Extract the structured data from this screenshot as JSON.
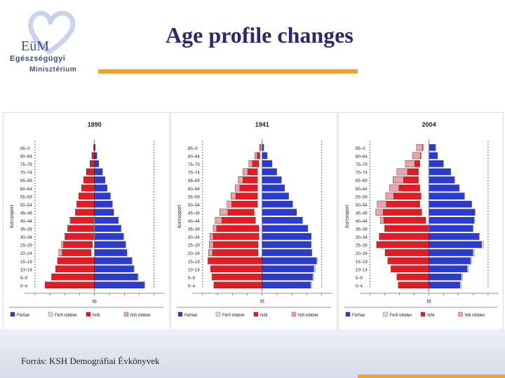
{
  "header": {
    "title": "Age profile changes",
    "logo": {
      "mark": "EüM",
      "line1": "Egészségügyi",
      "line2": "Minisztérium"
    }
  },
  "footer": {
    "source": "Forrás: KSH Demográfiai Évkönyvek"
  },
  "colors": {
    "male": "#2b3bd1",
    "female": "#e41b23",
    "male_surplus": "#d0dcef",
    "female_surplus": "#e8a4a8",
    "accent": "#f5a01e",
    "title": "#2a2a6a"
  },
  "chart_data": [
    {
      "type": "bar",
      "title": "1890",
      "ylabel": "korcsoport",
      "xlabel": "fő",
      "age_groups": [
        "0–4",
        "5–9",
        "10–14",
        "15–19",
        "20–24",
        "25–29",
        "30–34",
        "35–39",
        "40–44",
        "45–49",
        "50–54",
        "55–59",
        "60–64",
        "65–69",
        "70–74",
        "75–79",
        "80–84",
        "85–X"
      ],
      "series": [
        {
          "name": "Férfiak",
          "values": [
            380,
            330,
            300,
            285,
            245,
            235,
            220,
            200,
            180,
            145,
            135,
            120,
            95,
            80,
            60,
            32,
            18,
            6
          ]
        },
        {
          "name": "Nők",
          "values": [
            375,
            325,
            295,
            280,
            270,
            250,
            225,
            205,
            185,
            145,
            135,
            120,
            98,
            82,
            62,
            35,
            20,
            7
          ]
        }
      ],
      "legend": [
        "Férfiak",
        "Férfi többlet",
        "Nők",
        "Női többlet"
      ],
      "legend_position": "bottom"
    },
    {
      "type": "bar",
      "title": "1941",
      "ylabel": "korcsoport",
      "xlabel": "fő",
      "age_groups": [
        "0–4",
        "5–9",
        "10–14",
        "15–19",
        "20–24",
        "25–29",
        "30–34",
        "35–39",
        "40–44",
        "45–49",
        "50–54",
        "55–59",
        "60–64",
        "65–69",
        "70–74",
        "75–79",
        "80–84",
        "85–X"
      ],
      "series": [
        {
          "name": "Férfiak",
          "values": [
            375,
            390,
            400,
            415,
            375,
            370,
            370,
            345,
            305,
            260,
            230,
            200,
            170,
            145,
            110,
            75,
            38,
            12
          ]
        },
        {
          "name": "Nők",
          "values": [
            365,
            380,
            390,
            410,
            405,
            400,
            395,
            370,
            355,
            320,
            265,
            235,
            205,
            180,
            145,
            100,
            55,
            20
          ]
        }
      ],
      "legend": [
        "Férfiak",
        "Férfi többlet",
        "Nők",
        "Női többlet"
      ],
      "legend_position": "bottom"
    },
    {
      "type": "bar",
      "title": "2004",
      "ylabel": "korcsoport",
      "xlabel": "fő",
      "age_groups": [
        "0–4",
        "5–9",
        "10–14",
        "15–19",
        "20–24",
        "25–29",
        "30–34",
        "35–39",
        "40–44",
        "45–49",
        "50–54",
        "55–59",
        "60–64",
        "65–69",
        "70–74",
        "75–79",
        "80–84",
        "85–X"
      ],
      "series": [
        {
          "name": "Férfiak",
          "values": [
            245,
            255,
            300,
            325,
            345,
            415,
            385,
            335,
            345,
            350,
            325,
            270,
            230,
            195,
            165,
            110,
            65,
            50
          ]
        },
        {
          "name": "Nők",
          "values": [
            235,
            245,
            290,
            315,
            335,
            400,
            380,
            340,
            370,
            405,
            395,
            330,
            300,
            275,
            245,
            180,
            125,
            95
          ]
        }
      ],
      "legend": [
        "Férfiak",
        "Férfi többlet",
        "Nők",
        "Női többlet"
      ],
      "legend_position": "bottom"
    }
  ]
}
